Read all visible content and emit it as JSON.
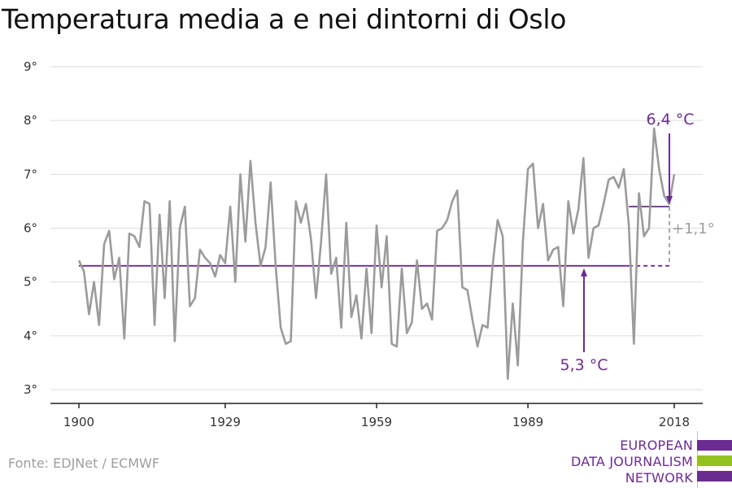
{
  "colors": {
    "line": "#9b9b9b",
    "accent": "#6a2c91",
    "delta": "#9e9e9e",
    "grid": "#dddddd",
    "axis": "#222222",
    "logo_green": "#95c11f"
  },
  "chart_data": {
    "type": "line",
    "title": "Temperatura media a e nei dintorni di Oslo",
    "xlabel": "",
    "ylabel": "",
    "xlim": [
      1900,
      2018
    ],
    "ylim": [
      3,
      9
    ],
    "x_ticks": [
      1900,
      1929,
      1959,
      1989,
      2018
    ],
    "y_ticks": [
      {
        "value": 3,
        "label": "3°"
      },
      {
        "value": 4,
        "label": "4°"
      },
      {
        "value": 5,
        "label": "5°"
      },
      {
        "value": 6,
        "label": "6°"
      },
      {
        "value": 7,
        "label": "7°"
      },
      {
        "value": 8,
        "label": "8°"
      },
      {
        "value": 9,
        "label": "9°"
      }
    ],
    "grid": true,
    "series": [
      {
        "x": [
          1900,
          1901,
          1902,
          1903,
          1904,
          1905,
          1906,
          1907,
          1908,
          1909,
          1910,
          1911,
          1912,
          1913,
          1914,
          1915,
          1916,
          1917,
          1918,
          1919,
          1920,
          1921,
          1922,
          1923,
          1924,
          1925,
          1926,
          1927,
          1928,
          1929,
          1930,
          1931,
          1932,
          1933,
          1934,
          1935,
          1936,
          1937,
          1938,
          1939,
          1940,
          1941,
          1942,
          1943,
          1944,
          1945,
          1946,
          1947,
          1948,
          1949,
          1950,
          1951,
          1952,
          1953,
          1954,
          1955,
          1956,
          1957,
          1958,
          1959,
          1960,
          1961,
          1962,
          1963,
          1964,
          1965,
          1966,
          1967,
          1968,
          1969,
          1970,
          1971,
          1972,
          1973,
          1974,
          1975,
          1976,
          1977,
          1978,
          1979,
          1980,
          1981,
          1982,
          1983,
          1984,
          1985,
          1986,
          1987,
          1988,
          1989,
          1990,
          1991,
          1992,
          1993,
          1994,
          1995,
          1996,
          1997,
          1998,
          1999,
          2000,
          2001,
          2002,
          2003,
          2004,
          2005,
          2006,
          2007,
          2008,
          2009,
          2010,
          2011,
          2012,
          2013,
          2014,
          2015,
          2016,
          2017,
          2018
        ],
        "values": [
          5.4,
          5.2,
          4.4,
          5.0,
          4.2,
          5.7,
          5.95,
          5.05,
          5.45,
          3.95,
          5.9,
          5.85,
          5.65,
          6.5,
          6.45,
          4.2,
          6.25,
          4.7,
          6.5,
          3.9,
          6.0,
          6.4,
          4.55,
          4.7,
          5.6,
          5.45,
          5.35,
          5.1,
          5.5,
          5.35,
          6.4,
          5.0,
          7.0,
          5.75,
          7.25,
          6.1,
          5.3,
          5.65,
          6.85,
          5.3,
          4.15,
          3.85,
          3.9,
          6.5,
          6.1,
          6.45,
          5.8,
          4.7,
          5.75,
          7.0,
          5.15,
          5.45,
          4.15,
          6.1,
          4.35,
          4.75,
          3.95,
          5.25,
          4.05,
          6.05,
          4.9,
          5.85,
          3.85,
          3.8,
          5.25,
          4.05,
          4.25,
          5.4,
          4.5,
          4.6,
          4.3,
          5.95,
          6.0,
          6.15,
          6.5,
          6.7,
          4.9,
          4.85,
          4.3,
          3.8,
          4.2,
          4.15,
          5.3,
          6.15,
          5.85,
          3.2,
          4.6,
          3.45,
          5.75,
          7.1,
          7.2,
          6.0,
          6.45,
          5.4,
          5.6,
          5.65,
          4.55,
          6.5,
          5.9,
          6.35,
          7.3,
          5.45,
          6.0,
          6.05,
          6.45,
          6.9,
          6.95,
          6.75,
          7.1,
          6.05,
          3.85,
          6.65,
          5.85,
          6.0,
          7.85,
          7.1,
          6.6,
          6.45,
          7.0
        ]
      }
    ],
    "baseline": {
      "value": 5.3,
      "from": 1900,
      "to": 2018
    },
    "recent_mean": {
      "value": 6.4,
      "from": 2009,
      "to": 2018
    },
    "annotations": {
      "recent": {
        "text": "6,4 °C",
        "x": 2018,
        "y": 6.4
      },
      "baseline": {
        "text": "5,3 °C",
        "x": 2010,
        "y": 5.3
      },
      "delta": {
        "text": "+1,1°"
      }
    }
  },
  "source": "Fonte: EDJNet / ECMWF",
  "logo": {
    "line1": "EUROPEAN",
    "line2": "DATA JOURNALISM",
    "line3": "NETWORK"
  }
}
